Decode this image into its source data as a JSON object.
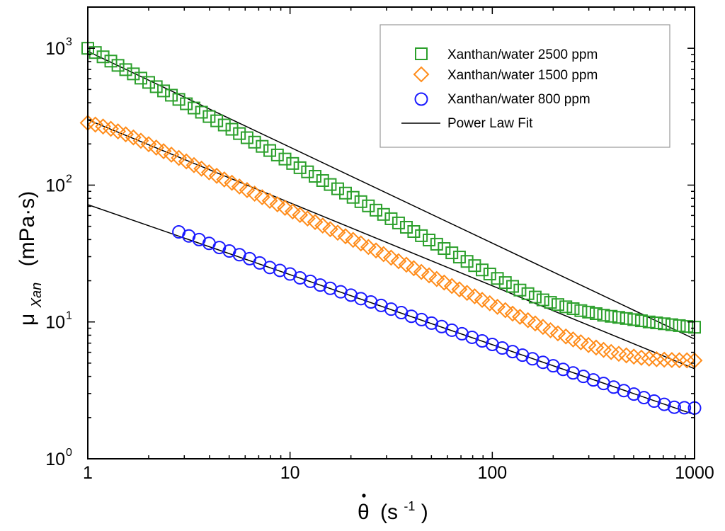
{
  "chart_data": {
    "type": "scatter",
    "xscale": "log",
    "yscale": "log",
    "xlim": [
      1,
      1000
    ],
    "ylim": [
      1,
      2000
    ],
    "xlabel": {
      "symbol": "θ",
      "unit_open": "(s",
      "unit_exp": "-1",
      "unit_close": ")"
    },
    "ylabel": {
      "symbol": "μ",
      "subscript": "Xan",
      "unit": "(mPa·s)"
    },
    "x_ticks": [
      {
        "value": 1,
        "label": "1"
      },
      {
        "value": 10,
        "label": "10"
      },
      {
        "value": 100,
        "label": "100"
      },
      {
        "value": 1000,
        "label": "1000"
      }
    ],
    "y_ticks": [
      {
        "value": 1,
        "base": "10",
        "exp": "0"
      },
      {
        "value": 10,
        "base": "10",
        "exp": "1"
      },
      {
        "value": 100,
        "base": "10",
        "exp": "2"
      },
      {
        "value": 1000,
        "base": "10",
        "exp": "3"
      }
    ],
    "legend_position": "top-right",
    "series": [
      {
        "name": "Xanthan/water 2500 ppm",
        "marker": "square",
        "color": "#2ca02c",
        "x": [
          1.0,
          1.09,
          1.19,
          1.3,
          1.41,
          1.54,
          1.68,
          1.83,
          2.0,
          2.18,
          2.37,
          2.59,
          2.82,
          3.07,
          3.35,
          3.65,
          3.98,
          4.34,
          4.73,
          5.16,
          5.62,
          6.13,
          6.68,
          7.28,
          7.94,
          8.66,
          9.44,
          10.3,
          11.2,
          12.2,
          13.3,
          14.5,
          15.8,
          17.2,
          18.8,
          20.5,
          22.4,
          24.4,
          26.6,
          29.0,
          31.6,
          34.4,
          37.6,
          40.9,
          44.6,
          48.7,
          53.1,
          57.8,
          63.1,
          68.8,
          75.0,
          81.8,
          89.1,
          97.2,
          106,
          116,
          126,
          137,
          150,
          163,
          178,
          194,
          211,
          231,
          251,
          274,
          299,
          326,
          355,
          387,
          422,
          460,
          501,
          546,
          596,
          649,
          708,
          772,
          841,
          917,
          1000
        ],
        "y": [
          1000,
          931,
          866,
          806,
          750,
          698,
          650,
          605,
          563,
          524,
          488,
          454,
          423,
          393,
          366,
          341,
          317,
          295,
          275,
          256,
          238,
          222,
          206,
          192,
          179,
          166,
          155,
          144,
          134,
          125,
          116,
          108,
          101,
          94,
          87.4,
          81.4,
          75.7,
          70.5,
          65.6,
          61.1,
          56.8,
          52.9,
          49.2,
          45.8,
          42.7,
          39.7,
          37.0,
          34.4,
          32.0,
          29.8,
          27.7,
          25.8,
          24.0,
          22.4,
          20.8,
          19.4,
          18.2,
          17.1,
          16.1,
          15.2,
          14.5,
          13.9,
          13.4,
          12.9,
          12.5,
          12.1,
          11.8,
          11.5,
          11.2,
          11.0,
          10.8,
          10.6,
          10.4,
          10.2,
          10.0,
          9.85,
          9.7,
          9.55,
          9.4,
          9.27,
          9.15
        ]
      },
      {
        "name": "Xanthan/water 1500 ppm",
        "marker": "diamond",
        "color": "#ff8c1a",
        "x": [
          1.0,
          1.09,
          1.19,
          1.3,
          1.41,
          1.54,
          1.68,
          1.83,
          2.0,
          2.18,
          2.37,
          2.59,
          2.82,
          3.07,
          3.35,
          3.65,
          3.98,
          4.34,
          4.73,
          5.16,
          5.62,
          6.13,
          6.68,
          7.28,
          7.94,
          8.66,
          9.44,
          10.3,
          11.2,
          12.2,
          13.3,
          14.5,
          15.8,
          17.2,
          18.8,
          20.5,
          22.4,
          24.4,
          26.6,
          29.0,
          31.6,
          34.4,
          37.6,
          40.9,
          44.6,
          48.7,
          53.1,
          57.8,
          63.1,
          68.8,
          75.0,
          81.8,
          89.1,
          97.2,
          106,
          116,
          126,
          137,
          150,
          163,
          178,
          194,
          211,
          231,
          251,
          274,
          299,
          326,
          355,
          387,
          422,
          460,
          501,
          546,
          596,
          649,
          708,
          772,
          841,
          917,
          1000
        ],
        "y": [
          285,
          277,
          268,
          258,
          247,
          235,
          223,
          211,
          199,
          188,
          177,
          167,
          158,
          149,
          140,
          132,
          124,
          117,
          110,
          104,
          97.6,
          92.0,
          86.6,
          81.6,
          76.8,
          72.4,
          68.2,
          64.2,
          60.5,
          57.0,
          53.7,
          50.6,
          47.6,
          44.9,
          42.3,
          39.8,
          37.5,
          35.3,
          33.3,
          31.3,
          29.5,
          27.8,
          26.2,
          24.7,
          23.2,
          21.9,
          20.6,
          19.4,
          18.3,
          17.3,
          16.3,
          15.4,
          14.5,
          13.7,
          12.9,
          12.2,
          11.5,
          10.9,
          10.3,
          9.75,
          9.2,
          8.7,
          8.25,
          7.83,
          7.45,
          7.1,
          6.78,
          6.5,
          6.25,
          6.03,
          5.85,
          5.7,
          5.58,
          5.48,
          5.4,
          5.34,
          5.3,
          5.27,
          5.25,
          5.24,
          5.23
        ]
      },
      {
        "name": "Xanthan/water 800 ppm",
        "marker": "circle",
        "color": "#1a1aff",
        "x": [
          2.82,
          3.16,
          3.55,
          3.98,
          4.47,
          5.01,
          5.62,
          6.31,
          7.08,
          7.94,
          8.91,
          10.0,
          11.2,
          12.6,
          14.1,
          15.8,
          17.8,
          20.0,
          22.4,
          25.1,
          28.2,
          31.6,
          35.5,
          39.8,
          44.7,
          50.1,
          56.2,
          63.1,
          70.8,
          79.4,
          89.1,
          100,
          112,
          126,
          141,
          158,
          178,
          200,
          224,
          251,
          282,
          316,
          355,
          398,
          447,
          501,
          562,
          631,
          708,
          794,
          891,
          1000
        ],
        "y": [
          45.5,
          42.5,
          40.0,
          37.5,
          35.0,
          33.0,
          31.0,
          29.0,
          27.0,
          25.0,
          23.8,
          22.4,
          21.0,
          19.8,
          18.6,
          17.6,
          16.6,
          15.7,
          14.8,
          14.0,
          13.2,
          12.4,
          11.7,
          11.0,
          10.4,
          9.8,
          9.25,
          8.7,
          8.2,
          7.72,
          7.27,
          6.85,
          6.45,
          6.07,
          5.72,
          5.38,
          5.07,
          4.78,
          4.5,
          4.24,
          4.0,
          3.77,
          3.55,
          3.34,
          3.15,
          2.97,
          2.8,
          2.64,
          2.5,
          2.38,
          2.36,
          2.35
        ]
      },
      {
        "name": "Power Law Fit",
        "type": "line",
        "color": "#000000",
        "lines": [
          {
            "x": [
              1,
              1000
            ],
            "y": [
              950,
              7.5
            ]
          },
          {
            "x": [
              1,
              1000
            ],
            "y": [
              300,
              4.55
            ]
          },
          {
            "x": [
              1,
              1000
            ],
            "y": [
              72,
              2.1
            ]
          }
        ]
      }
    ]
  }
}
